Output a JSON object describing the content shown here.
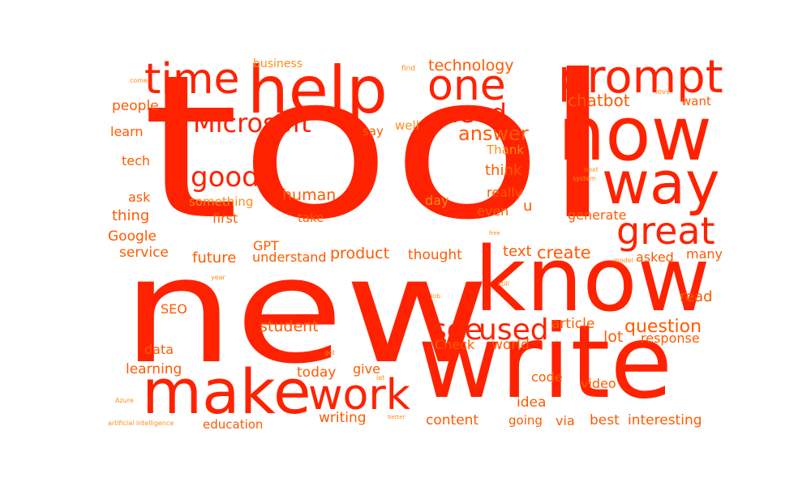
{
  "colors": {
    "background": "#ffffff",
    "red": "#ff2200",
    "orange": "#ff5a00",
    "light_orange": "#ff8c1a"
  },
  "words": [
    "tool",
    "new",
    "now",
    "write",
    "know",
    "help",
    "prompt",
    "make",
    "way",
    "time",
    "one",
    "work",
    "great",
    "Microsoft",
    "see",
    "used",
    "good",
    "need",
    "question",
    "answer",
    "chatbot",
    "technology",
    "business",
    "people",
    "want",
    "learn",
    "say",
    "well",
    "tech",
    "Thank",
    "think",
    "ask",
    "something",
    "human",
    "day",
    "really",
    "thing",
    "first",
    "take",
    "even",
    "u",
    "generate",
    "Google",
    "GPT",
    "service",
    "future",
    "understand",
    "product",
    "thought",
    "text",
    "create",
    "asked",
    "many",
    "read",
    "SEO",
    "student",
    "article",
    "lot",
    "response",
    "data",
    "Check",
    "world",
    "learning",
    "today",
    "give",
    "code",
    "video",
    "idea",
    "writing",
    "content",
    "going",
    "via",
    "best",
    "interesting",
    "education",
    "find",
    "love",
    "come",
    "next",
    "system",
    "free",
    "model",
    "year",
    "still",
    "job",
    "got",
    "let",
    "Azure",
    "artificial intelligence",
    "better"
  ]
}
